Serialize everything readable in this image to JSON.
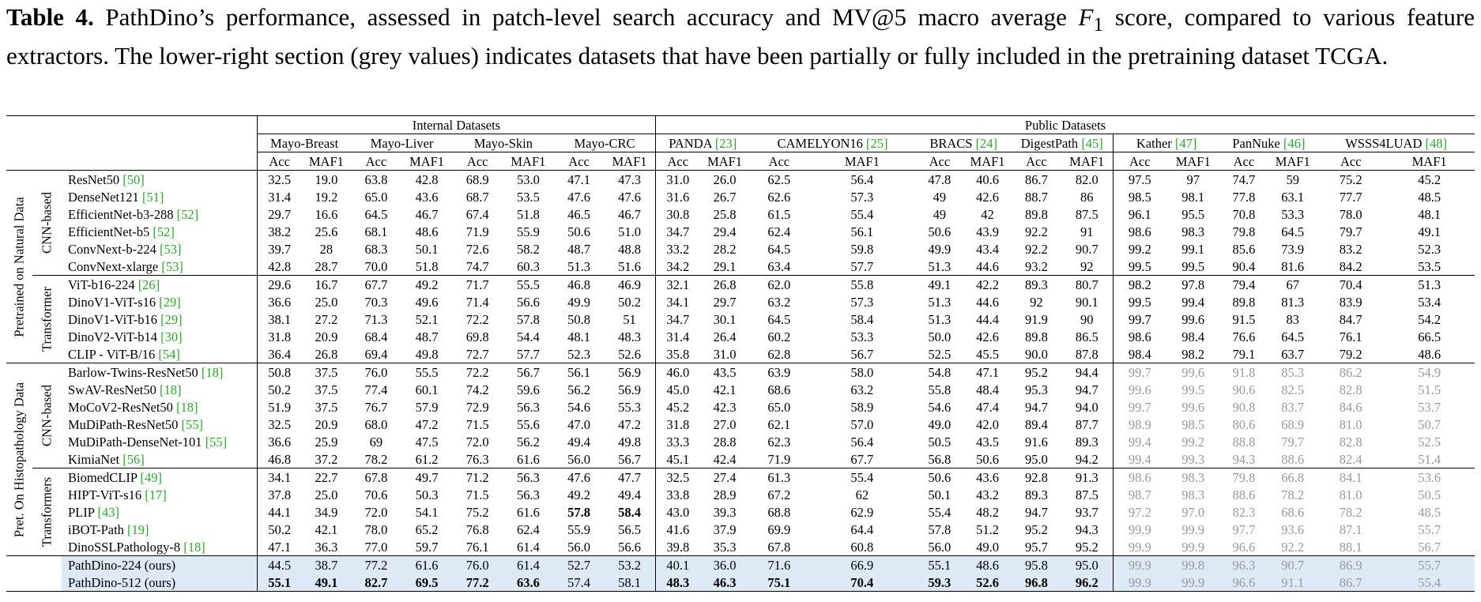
{
  "caption": {
    "label": "Table 4.",
    "text_before": " PathDino’s performance, assessed in patch-level search accuracy and MV@5 macro average ",
    "f1_symbol": "F",
    "f1_sub": "1",
    "text_after": " score, compared to various feature extractors.  The lower-right section (grey values) indicates datasets that have been partially or fully included in the pretraining dataset TCGA."
  },
  "table": {
    "groups": {
      "internal": "Internal Datasets",
      "public": "Public Datasets"
    },
    "datasets": [
      {
        "name": "Mayo-Breast",
        "cite": ""
      },
      {
        "name": "Mayo-Liver",
        "cite": ""
      },
      {
        "name": "Mayo-Skin",
        "cite": ""
      },
      {
        "name": "Mayo-CRC",
        "cite": ""
      },
      {
        "name": "PANDA ",
        "cite": "[23]"
      },
      {
        "name": "CAMELYON16 ",
        "cite": "[25]"
      },
      {
        "name": "BRACS ",
        "cite": "[24]"
      },
      {
        "name": "DigestPath ",
        "cite": "[45]"
      },
      {
        "name": "Kather ",
        "cite": "[47]"
      },
      {
        "name": "PanNuke ",
        "cite": "[46]"
      },
      {
        "name": "WSSS4LUAD ",
        "cite": "[48]"
      }
    ],
    "metrics": [
      "Acc",
      "MAF1"
    ],
    "sections": [
      {
        "label": "Pretrained on Natural Data",
        "subgroups": [
          {
            "label": "CNN-based",
            "rows": [
              {
                "name": "ResNet50 ",
                "cite": "[50]",
                "values": [
                  "32.5",
                  "19.0",
                  "63.8",
                  "42.8",
                  "68.9",
                  "53.0",
                  "47.1",
                  "47.3",
                  "31.0",
                  "26.0",
                  "62.5",
                  "56.4",
                  "47.8",
                  "40.6",
                  "86.7",
                  "82.0",
                  "97.5",
                  "97",
                  "74.7",
                  "59",
                  "75.2",
                  "45.2"
                ]
              },
              {
                "name": "DenseNet121 ",
                "cite": "[51]",
                "values": [
                  "31.4",
                  "19.2",
                  "65.0",
                  "43.6",
                  "68.7",
                  "53.5",
                  "47.6",
                  "47.6",
                  "31.6",
                  "26.7",
                  "62.6",
                  "57.3",
                  "49",
                  "42.6",
                  "88.7",
                  "86",
                  "98.5",
                  "98.1",
                  "77.8",
                  "63.1",
                  "77.7",
                  "48.5"
                ]
              },
              {
                "name": "EfficientNet-b3-288 ",
                "cite": "[52]",
                "values": [
                  "29.7",
                  "16.6",
                  "64.5",
                  "46.7",
                  "67.4",
                  "51.8",
                  "46.5",
                  "46.7",
                  "30.8",
                  "25.8",
                  "61.5",
                  "55.4",
                  "49",
                  "42",
                  "89.8",
                  "87.5",
                  "96.1",
                  "95.5",
                  "70.8",
                  "53.3",
                  "78.0",
                  "48.1"
                ]
              },
              {
                "name": "EfficientNet-b5 ",
                "cite": "[52]",
                "values": [
                  "38.2",
                  "25.6",
                  "68.1",
                  "48.6",
                  "71.9",
                  "55.9",
                  "50.6",
                  "51.0",
                  "34.7",
                  "29.4",
                  "62.4",
                  "56.1",
                  "50.6",
                  "43.9",
                  "92.2",
                  "91",
                  "98.6",
                  "98.3",
                  "79.8",
                  "64.5",
                  "79.7",
                  "49.1"
                ]
              },
              {
                "name": "ConvNext-b-224 ",
                "cite": "[53]",
                "values": [
                  "39.7",
                  "28",
                  "68.3",
                  "50.1",
                  "72.6",
                  "58.2",
                  "48.7",
                  "48.8",
                  "33.2",
                  "28.2",
                  "64.5",
                  "59.8",
                  "49.9",
                  "43.4",
                  "92.2",
                  "90.7",
                  "99.2",
                  "99.1",
                  "85.6",
                  "73.9",
                  "83.2",
                  "52.3"
                ]
              },
              {
                "name": "ConvNext-xlarge ",
                "cite": "[53]",
                "values": [
                  "42.8",
                  "28.7",
                  "70.0",
                  "51.8",
                  "74.7",
                  "60.3",
                  "51.3",
                  "51.6",
                  "34.2",
                  "29.1",
                  "63.4",
                  "57.7",
                  "51.3",
                  "44.6",
                  "93.2",
                  "92",
                  "99.5",
                  "99.5",
                  "90.4",
                  "81.6",
                  "84.2",
                  "53.5"
                ]
              }
            ]
          },
          {
            "label": "Transformer",
            "rows": [
              {
                "name": "ViT-b16-224 ",
                "cite": "[26]",
                "values": [
                  "29.6",
                  "16.7",
                  "67.7",
                  "49.2",
                  "71.7",
                  "55.5",
                  "46.8",
                  "46.9",
                  "32.1",
                  "26.8",
                  "62.0",
                  "55.8",
                  "49.1",
                  "42.2",
                  "89.3",
                  "80.7",
                  "98.2",
                  "97.8",
                  "79.4",
                  "67",
                  "70.4",
                  "51.3"
                ]
              },
              {
                "name": "DinoV1-ViT-s16 ",
                "cite": "[29]",
                "values": [
                  "36.6",
                  "25.0",
                  "70.3",
                  "49.6",
                  "71.4",
                  "56.6",
                  "49.9",
                  "50.2",
                  "34.1",
                  "29.7",
                  "63.2",
                  "57.3",
                  "51.3",
                  "44.6",
                  "92",
                  "90.1",
                  "99.5",
                  "99.4",
                  "89.8",
                  "81.3",
                  "83.9",
                  "53.4"
                ]
              },
              {
                "name": "DinoV1-ViT-b16 ",
                "cite": "[29]",
                "values": [
                  "38.1",
                  "27.2",
                  "71.3",
                  "52.1",
                  "72.2",
                  "57.8",
                  "50.8",
                  "51",
                  "34.7",
                  "30.1",
                  "64.5",
                  "58.4",
                  "51.3",
                  "44.4",
                  "91.9",
                  "90",
                  "99.7",
                  "99.6",
                  "91.5",
                  "83",
                  "84.7",
                  "54.2"
                ]
              },
              {
                "name": "DinoV2-ViT-b14 ",
                "cite": "[30]",
                "values": [
                  "31.8",
                  "20.9",
                  "68.4",
                  "48.7",
                  "69.8",
                  "54.4",
                  "48.1",
                  "48.3",
                  "31.4",
                  "26.4",
                  "60.2",
                  "53.3",
                  "50.0",
                  "42.6",
                  "89.8",
                  "86.5",
                  "98.6",
                  "98.4",
                  "76.6",
                  "64.5",
                  "76.1",
                  "66.5"
                ]
              },
              {
                "name": "CLIP - ViT-B/16 ",
                "cite": "[54]",
                "values": [
                  "36.4",
                  "26.8",
                  "69.4",
                  "49.8",
                  "72.7",
                  "57.7",
                  "52.3",
                  "52.6",
                  "35.8",
                  "31.0",
                  "62.8",
                  "56.7",
                  "52.5",
                  "45.5",
                  "90.0",
                  "87.8",
                  "98.4",
                  "98.2",
                  "79.1",
                  "63.7",
                  "79.2",
                  "48.6"
                ]
              }
            ]
          }
        ]
      },
      {
        "label": "Pret. On Histopathology Data",
        "subgroups": [
          {
            "label": "CNN-based",
            "rows": [
              {
                "name": "Barlow-Twins-ResNet50 ",
                "cite": "[18]",
                "values": [
                  "50.8",
                  "37.5",
                  "76.0",
                  "55.5",
                  "72.2",
                  "56.7",
                  "56.1",
                  "56.9",
                  "46.0",
                  "43.5",
                  "63.9",
                  "58.0",
                  "54.8",
                  "47.1",
                  "95.2",
                  "94.4",
                  "99.7",
                  "99.6",
                  "91.8",
                  "85.3",
                  "86.2",
                  "54.9"
                ]
              },
              {
                "name": "SwAV-ResNet50 ",
                "cite": "[18]",
                "values": [
                  "50.2",
                  "37.5",
                  "77.4",
                  "60.1",
                  "74.2",
                  "59.6",
                  "56.2",
                  "56.9",
                  "45.0",
                  "42.1",
                  "68.6",
                  "63.2",
                  "55.8",
                  "48.4",
                  "95.3",
                  "94.7",
                  "99.6",
                  "99.5",
                  "90.6",
                  "82.5",
                  "82.8",
                  "51.5"
                ]
              },
              {
                "name": "MoCoV2-ResNet50 ",
                "cite": "[18]",
                "values": [
                  "51.9",
                  "37.5",
                  "76.7",
                  "57.9",
                  "72.9",
                  "56.3",
                  "54.6",
                  "55.3",
                  "45.2",
                  "42.3",
                  "65.0",
                  "58.9",
                  "54.6",
                  "47.4",
                  "94.7",
                  "94.0",
                  "99.7",
                  "99.6",
                  "90.8",
                  "83.7",
                  "84.6",
                  "53.7"
                ]
              },
              {
                "name": "MuDiPath-ResNet50 ",
                "cite": "[55]",
                "values": [
                  "32.5",
                  "20.9",
                  "68.0",
                  "47.2",
                  "71.5",
                  "55.6",
                  "47.0",
                  "47.2",
                  "31.8",
                  "27.0",
                  "62.1",
                  "57.0",
                  "49.0",
                  "42.0",
                  "89.4",
                  "87.7",
                  "98.9",
                  "98.5",
                  "80.6",
                  "68.9",
                  "81.0",
                  "50.7"
                ]
              },
              {
                "name": "MuDiPath-DenseNet-101 ",
                "cite": "[55]",
                "values": [
                  "36.6",
                  "25.9",
                  "69",
                  "47.5",
                  "72.0",
                  "56.2",
                  "49.4",
                  "49.8",
                  "33.3",
                  "28.8",
                  "62.3",
                  "56.4",
                  "50.5",
                  "43.5",
                  "91.6",
                  "89.3",
                  "99.4",
                  "99.2",
                  "88.8",
                  "79.7",
                  "82.8",
                  "52.5"
                ]
              },
              {
                "name": "KimiaNet ",
                "cite": "[56]",
                "values": [
                  "46.8",
                  "37.2",
                  "78.2",
                  "61.2",
                  "76.3",
                  "61.6",
                  "56.0",
                  "56.7",
                  "45.1",
                  "42.4",
                  "71.9",
                  "67.7",
                  "56.8",
                  "50.6",
                  "95.0",
                  "94.2",
                  "99.4",
                  "99.3",
                  "94.3",
                  "88.6",
                  "82.4",
                  "51.4"
                ]
              }
            ]
          },
          {
            "label": "Transformers",
            "rows": [
              {
                "name": "BiomedCLIP ",
                "cite": "[49]",
                "values": [
                  "34.1",
                  "22.7",
                  "67.8",
                  "49.7",
                  "71.2",
                  "56.3",
                  "47.6",
                  "47.7",
                  "32.5",
                  "27.4",
                  "61.3",
                  "55.4",
                  "50.6",
                  "43.6",
                  "92.8",
                  "91.3",
                  "98.6",
                  "98.3",
                  "79.8",
                  "66.8",
                  "84.1",
                  "53.6"
                ]
              },
              {
                "name": "HIPT-ViT-s16 ",
                "cite": "[17]",
                "values": [
                  "37.8",
                  "25.0",
                  "70.6",
                  "50.3",
                  "71.5",
                  "56.3",
                  "49.2",
                  "49.4",
                  "33.8",
                  "28.9",
                  "67.2",
                  "62",
                  "50.1",
                  "43.2",
                  "89.3",
                  "87.5",
                  "98.7",
                  "98.3",
                  "88.6",
                  "78.2",
                  "81.0",
                  "50.5"
                ]
              },
              {
                "name": "PLIP ",
                "cite": "[43]",
                "values": [
                  "44.1",
                  "34.9",
                  "72.0",
                  "54.1",
                  "75.2",
                  "61.6",
                  "57.8",
                  "58.4",
                  "43.0",
                  "39.3",
                  "68.8",
                  "62.9",
                  "55.4",
                  "48.2",
                  "94.7",
                  "93.7",
                  "97.2",
                  "97.0",
                  "82.3",
                  "68.6",
                  "78.2",
                  "48.5"
                ],
                "bold": [
                  6,
                  7
                ]
              },
              {
                "name": "iBOT-Path ",
                "cite": "[19]",
                "values": [
                  "50.2",
                  "42.1",
                  "78.0",
                  "65.2",
                  "76.8",
                  "62.4",
                  "55.9",
                  "56.5",
                  "41.6",
                  "37.9",
                  "69.9",
                  "64.4",
                  "57.8",
                  "51.2",
                  "95.2",
                  "94.3",
                  "99.9",
                  "99.9",
                  "97.7",
                  "93.6",
                  "87.1",
                  "55.7"
                ]
              },
              {
                "name": "DinoSSLPathology-8 ",
                "cite": "[18]",
                "values": [
                  "47.1",
                  "36.3",
                  "77.0",
                  "59.7",
                  "76.1",
                  "61.4",
                  "56.0",
                  "56.6",
                  "39.8",
                  "35.3",
                  "67.8",
                  "60.8",
                  "56.0",
                  "49.0",
                  "95.7",
                  "95.2",
                  "99.9",
                  "99.9",
                  "96.6",
                  "92.2",
                  "88.1",
                  "56.7"
                ]
              }
            ]
          }
        ]
      }
    ],
    "ours": [
      {
        "name": "PathDino-224 (ours)",
        "values": [
          "44.5",
          "38.7",
          "77.2",
          "61.6",
          "76.0",
          "61.4",
          "52.7",
          "53.2",
          "40.1",
          "36.0",
          "71.6",
          "66.9",
          "55.1",
          "48.6",
          "95.8",
          "95.0",
          "99.9",
          "99.8",
          "96.3",
          "90.7",
          "86.9",
          "55.7"
        ],
        "bold": []
      },
      {
        "name": "PathDino-512 (ours)",
        "values": [
          "55.1",
          "49.1",
          "82.7",
          "69.5",
          "77.2",
          "63.6",
          "57.4",
          "58.1",
          "48.3",
          "46.3",
          "75.1",
          "70.4",
          "59.3",
          "52.6",
          "96.8",
          "96.2",
          "99.9",
          "99.9",
          "96.6",
          "91.1",
          "86.7",
          "55.4"
        ],
        "bold": [
          0,
          1,
          2,
          3,
          4,
          5,
          8,
          9,
          10,
          11,
          12,
          13,
          14,
          15
        ]
      }
    ]
  }
}
